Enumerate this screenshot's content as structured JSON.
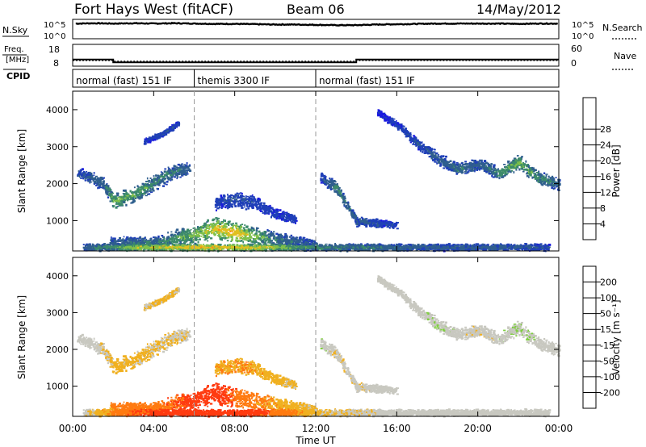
{
  "header": {
    "site": "Fort Hays West (fitACF)",
    "beam": "Beam 06",
    "date": "14/May/2012"
  },
  "strips": {
    "nsky_label": "N.Sky",
    "nsky_ticks": [
      "10^5",
      "10^0"
    ],
    "nsearch_label": "N.Search",
    "nsearch_ticks": [
      "10^5",
      "10^0"
    ],
    "freq_label_1": "Freq.",
    "freq_label_2": "[MHz]",
    "freq_ticks": [
      "18",
      "8"
    ],
    "nave_label": "Nave",
    "nave_ticks": [
      "60",
      "0"
    ],
    "cpid_label": "CPID",
    "cpid_segments": [
      {
        "start_hour": 0,
        "end_hour": 6,
        "label": "normal (fast) 151 IF"
      },
      {
        "start_hour": 6,
        "end_hour": 12,
        "label": "themis 3300 IF"
      },
      {
        "start_hour": 12,
        "end_hour": 24,
        "label": "normal (fast) 151 IF"
      }
    ]
  },
  "axes": {
    "ylabel": "Slant Range [km]",
    "yticks": [
      "1000",
      "2000",
      "3000",
      "4000"
    ],
    "xticks": [
      "00:00",
      "04:00",
      "08:00",
      "12:00",
      "16:00",
      "20:00",
      "00:00"
    ],
    "xlabel": "Time UT"
  },
  "colorbars": {
    "power": {
      "label": "Power [dB]",
      "ticks": [
        "4",
        "8",
        "12",
        "16",
        "20",
        "24",
        "28"
      ],
      "colors": [
        "#1a1ae0",
        "#1f3fb8",
        "#2f5e8e",
        "#3c8a6a",
        "#7fc04a",
        "#e0c020",
        "#ff8a10",
        "#ff3b10",
        "#e00000"
      ]
    },
    "velocity": {
      "label": "Velocity [m s⁻¹]",
      "ticks": [
        "200",
        "100",
        "50",
        "15",
        "-15",
        "-50",
        "-100",
        "-200"
      ],
      "colors": [
        "#1a1ae0",
        "#2850b0",
        "#2f7a70",
        "#7fcf40",
        "#c8c8c0",
        "#f0b020",
        "#ff7a10",
        "#ff3b10",
        "#e00000"
      ]
    }
  },
  "chart_data": {
    "type": "heatmap",
    "title": "Fort Hays West (fitACF) Beam 06 14/May/2012",
    "x_units": "hours UT",
    "xlim": [
      0,
      24
    ],
    "ylim": [
      180,
      4500
    ],
    "nsky": {
      "log_range": [
        0,
        5
      ],
      "values": [
        [
          0.2,
          4.2
        ],
        [
          1,
          4.3
        ],
        [
          2,
          4.2
        ],
        [
          3,
          4.3
        ],
        [
          4,
          4.2
        ],
        [
          5,
          4.3
        ],
        [
          6,
          4.2
        ],
        [
          7,
          4.1
        ],
        [
          8,
          4.1
        ],
        [
          9,
          4.0
        ],
        [
          10,
          3.9
        ],
        [
          11,
          3.9
        ],
        [
          12,
          3.8
        ],
        [
          13,
          3.7
        ],
        [
          14,
          3.7
        ],
        [
          15,
          3.9
        ],
        [
          16,
          4.0
        ],
        [
          17,
          4.1
        ],
        [
          18,
          4.2
        ],
        [
          19,
          4.2
        ],
        [
          20,
          4.2
        ],
        [
          21,
          4.2
        ],
        [
          22,
          4.1
        ],
        [
          23,
          4.2
        ],
        [
          24,
          4.2
        ]
      ]
    },
    "frequency_mhz": [
      [
        0,
        11
      ],
      [
        2,
        11
      ],
      [
        2,
        9.6
      ],
      [
        14,
        9.6
      ],
      [
        14,
        11
      ],
      [
        24,
        11
      ]
    ],
    "nave": [
      [
        0,
        15
      ],
      [
        2,
        15
      ],
      [
        2,
        13
      ],
      [
        14,
        13
      ],
      [
        14,
        15
      ],
      [
        24,
        15
      ]
    ],
    "scatter_regions": [
      {
        "name": "evening_band",
        "t": [
          0.2,
          1,
          1.5,
          2,
          3,
          4,
          5,
          5.8
        ],
        "r_mid": [
          2300,
          2150,
          2020,
          1550,
          1720,
          2050,
          2350,
          2450
        ],
        "r_half": [
          180,
          190,
          190,
          220,
          230,
          250,
          240,
          200
        ],
        "power_db": [
          8,
          10,
          12,
          18,
          16,
          14,
          12,
          10
        ],
        "velocity": [
          0,
          0,
          -10,
          -30,
          -25,
          -20,
          -15,
          -5
        ]
      },
      {
        "name": "upper_patch",
        "t": [
          3.5,
          4.5,
          5.2
        ],
        "r_mid": [
          3150,
          3400,
          3650
        ],
        "r_half": [
          80,
          100,
          70
        ],
        "power_db": [
          6,
          8,
          6
        ],
        "velocity": [
          -20,
          -30,
          -10
        ]
      },
      {
        "name": "themis_low",
        "t": [
          1.8,
          4,
          6,
          7,
          8,
          9,
          10,
          11,
          12
        ],
        "r_mid": [
          450,
          420,
          650,
          800,
          700,
          600,
          500,
          450,
          400
        ],
        "r_half": [
          150,
          180,
          300,
          320,
          300,
          260,
          220,
          180,
          150
        ],
        "power_db": [
          10,
          12,
          18,
          22,
          24,
          18,
          12,
          10,
          8
        ],
        "velocity": [
          -60,
          -80,
          -120,
          -140,
          -90,
          -60,
          -40,
          -30,
          -20
        ]
      },
      {
        "name": "themis_scatter",
        "t": [
          7,
          8,
          9,
          10,
          11
        ],
        "r_mid": [
          1500,
          1600,
          1500,
          1200,
          1050
        ],
        "r_half": [
          200,
          250,
          200,
          150,
          120
        ],
        "power_db": [
          6,
          8,
          7,
          6,
          6
        ],
        "velocity": [
          -40,
          -50,
          -40,
          -30,
          -20
        ]
      },
      {
        "name": "post_themis_band",
        "t": [
          12.2,
          13,
          14,
          15,
          16
        ],
        "r_mid": [
          2200,
          1900,
          1000,
          950,
          900
        ],
        "r_half": [
          150,
          180,
          150,
          120,
          100
        ],
        "power_db": [
          8,
          14,
          10,
          8,
          6
        ],
        "velocity": [
          10,
          -10,
          -5,
          0,
          0
        ]
      },
      {
        "name": "night_descending",
        "t": [
          15,
          16,
          17,
          18,
          19,
          20,
          21,
          22,
          23,
          24
        ],
        "r_mid": [
          3950,
          3600,
          3100,
          2700,
          2400,
          2550,
          2300,
          2600,
          2150,
          2000
        ],
        "r_half": [
          100,
          120,
          160,
          180,
          200,
          180,
          200,
          220,
          200,
          180
        ],
        "power_db": [
          4,
          6,
          8,
          10,
          12,
          10,
          14,
          18,
          14,
          12
        ],
        "velocity": [
          0,
          0,
          0,
          5,
          0,
          -5,
          0,
          10,
          0,
          0
        ]
      },
      {
        "name": "near_range_gs",
        "t": [
          0.5,
          3,
          6,
          9,
          12,
          15,
          18,
          21,
          23.5
        ],
        "r_mid": [
          300,
          300,
          300,
          300,
          300,
          300,
          300,
          300,
          300
        ],
        "r_half": [
          100,
          100,
          100,
          100,
          100,
          100,
          100,
          100,
          100
        ],
        "power_db": [
          10,
          20,
          24,
          22,
          14,
          12,
          10,
          10,
          8
        ],
        "velocity": [
          0,
          -100,
          -140,
          -120,
          -20,
          0,
          0,
          0,
          0
        ]
      }
    ]
  }
}
